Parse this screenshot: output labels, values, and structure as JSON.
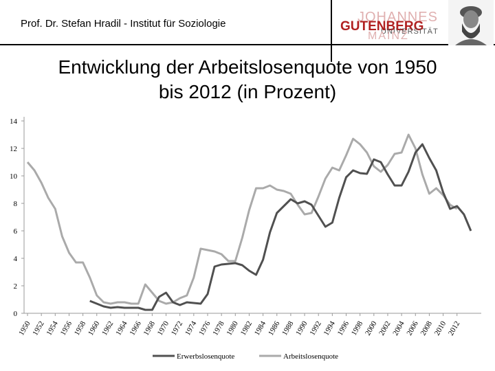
{
  "header": {
    "text": "Prof. Dr. Stefan Hradil - Institut für Soziologie",
    "logo": {
      "line1": "JOHANNES",
      "line2": "GUTENBERG",
      "line3": "UNIVERSITÄT",
      "line4": "MAINZ"
    }
  },
  "title": {
    "line1": "Entwicklung der Arbeitslosenquote von 1950",
    "line2": "bis 2012 (in Prozent)"
  },
  "chart_data": {
    "type": "line",
    "ylim": [
      0,
      14
    ],
    "yticks": [
      0,
      2,
      4,
      6,
      8,
      10,
      12,
      14
    ],
    "xlim": [
      1950,
      2012
    ],
    "xticks": [
      1950,
      1952,
      1954,
      1956,
      1958,
      1960,
      1962,
      1964,
      1966,
      1968,
      1970,
      1972,
      1974,
      1976,
      1978,
      1980,
      1982,
      1984,
      1986,
      1988,
      1990,
      1992,
      1994,
      1996,
      1998,
      2000,
      2002,
      2004,
      2006,
      2008,
      2010,
      2012
    ],
    "grid": "horizontal-off",
    "legend": "bottom",
    "series": [
      {
        "name": "Erwerbslosenquote",
        "color": "#505050",
        "points": [
          [
            1959,
            0.9
          ],
          [
            1960,
            0.7
          ],
          [
            1961,
            0.5
          ],
          [
            1962,
            0.4
          ],
          [
            1963,
            0.45
          ],
          [
            1964,
            0.4
          ],
          [
            1965,
            0.4
          ],
          [
            1966,
            0.4
          ],
          [
            1967,
            0.25
          ],
          [
            1968,
            0.25
          ],
          [
            1969,
            1.2
          ],
          [
            1970,
            1.5
          ],
          [
            1971,
            0.8
          ],
          [
            1972,
            0.6
          ],
          [
            1973,
            0.8
          ],
          [
            1974,
            0.75
          ],
          [
            1975,
            0.7
          ],
          [
            1976,
            1.4
          ],
          [
            1977,
            3.4
          ],
          [
            1978,
            3.55
          ],
          [
            1979,
            3.6
          ],
          [
            1980,
            3.65
          ],
          [
            1981,
            3.5
          ],
          [
            1982,
            3.1
          ],
          [
            1983,
            2.8
          ],
          [
            1984,
            3.9
          ],
          [
            1985,
            5.9
          ],
          [
            1986,
            7.3
          ],
          [
            1987,
            7.8
          ],
          [
            1988,
            8.3
          ],
          [
            1989,
            8.0
          ],
          [
            1990,
            8.15
          ],
          [
            1991,
            7.9
          ],
          [
            1992,
            7.1
          ],
          [
            1993,
            6.3
          ],
          [
            1994,
            6.6
          ],
          [
            1995,
            8.4
          ],
          [
            1996,
            9.9
          ],
          [
            1997,
            10.4
          ],
          [
            1998,
            10.2
          ],
          [
            1999,
            10.15
          ],
          [
            2000,
            11.2
          ],
          [
            2001,
            11.0
          ],
          [
            2002,
            10.1
          ],
          [
            2003,
            9.3
          ],
          [
            2004,
            9.3
          ],
          [
            2005,
            10.3
          ],
          [
            2006,
            11.7
          ],
          [
            2007,
            12.3
          ],
          [
            2008,
            11.3
          ],
          [
            2009,
            10.4
          ],
          [
            2010,
            8.8
          ],
          [
            2011,
            7.6
          ],
          [
            2012,
            7.8
          ],
          [
            2013,
            7.2
          ],
          [
            2014,
            6.0
          ]
        ]
      },
      {
        "name": "Arbeitslosenquote",
        "color": "#aaaaaa",
        "points": [
          [
            1950,
            11.0
          ],
          [
            1951,
            10.4
          ],
          [
            1952,
            9.5
          ],
          [
            1953,
            8.4
          ],
          [
            1954,
            7.6
          ],
          [
            1955,
            5.6
          ],
          [
            1956,
            4.4
          ],
          [
            1957,
            3.7
          ],
          [
            1958,
            3.7
          ],
          [
            1959,
            2.6
          ],
          [
            1960,
            1.3
          ],
          [
            1961,
            0.8
          ],
          [
            1962,
            0.7
          ],
          [
            1963,
            0.8
          ],
          [
            1964,
            0.8
          ],
          [
            1965,
            0.7
          ],
          [
            1966,
            0.7
          ],
          [
            1967,
            2.1
          ],
          [
            1968,
            1.5
          ],
          [
            1969,
            0.9
          ],
          [
            1970,
            0.7
          ],
          [
            1971,
            0.8
          ],
          [
            1972,
            1.1
          ],
          [
            1973,
            1.3
          ],
          [
            1974,
            2.6
          ],
          [
            1975,
            4.7
          ],
          [
            1976,
            4.6
          ],
          [
            1977,
            4.5
          ],
          [
            1978,
            4.3
          ],
          [
            1979,
            3.8
          ],
          [
            1980,
            3.8
          ],
          [
            1981,
            5.5
          ],
          [
            1982,
            7.5
          ],
          [
            1983,
            9.1
          ],
          [
            1984,
            9.1
          ],
          [
            1985,
            9.3
          ],
          [
            1986,
            9.0
          ],
          [
            1987,
            8.9
          ],
          [
            1988,
            8.7
          ],
          [
            1989,
            7.9
          ],
          [
            1990,
            7.2
          ],
          [
            1991,
            7.3
          ],
          [
            1992,
            8.5
          ],
          [
            1993,
            9.8
          ],
          [
            1994,
            10.6
          ],
          [
            1995,
            10.4
          ],
          [
            1996,
            11.5
          ],
          [
            1997,
            12.7
          ],
          [
            1998,
            12.3
          ],
          [
            1999,
            11.7
          ],
          [
            2000,
            10.7
          ],
          [
            2001,
            10.3
          ],
          [
            2002,
            10.8
          ],
          [
            2003,
            11.6
          ],
          [
            2004,
            11.7
          ],
          [
            2005,
            13.0
          ],
          [
            2006,
            12.0
          ],
          [
            2007,
            10.1
          ],
          [
            2008,
            8.7
          ],
          [
            2009,
            9.1
          ],
          [
            2010,
            8.6
          ],
          [
            2011,
            7.9
          ],
          [
            2012,
            7.6
          ]
        ]
      }
    ]
  }
}
